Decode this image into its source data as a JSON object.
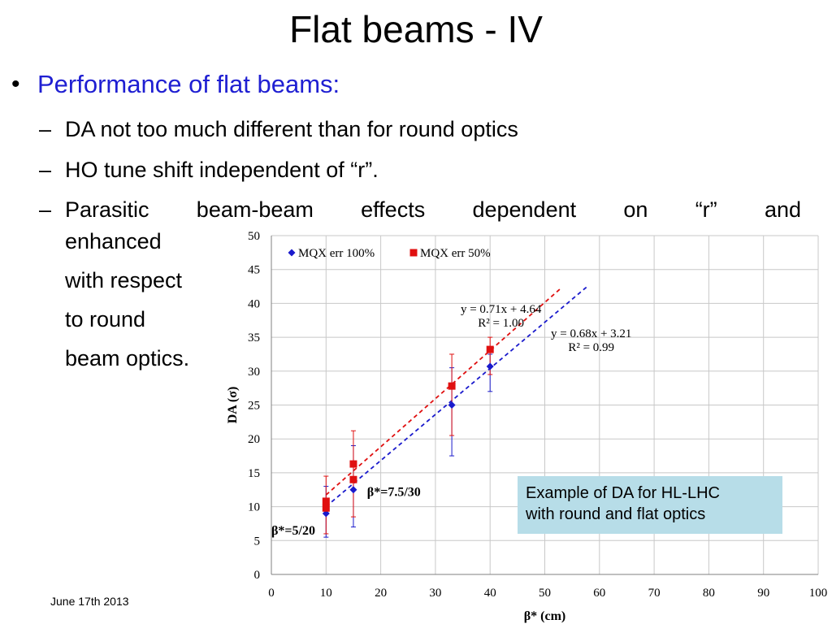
{
  "title": "Flat beams - IV",
  "bullet": {
    "main": "Performance of flat beams:",
    "main_color": "#1f1fd2",
    "subs": [
      "DA not too much different than for round optics",
      "HO tune shift independent of “r”.",
      "Parasitic beam-beam effects dependent on “r” and"
    ],
    "continuation": [
      "enhanced",
      "with respect",
      "to round",
      "beam optics."
    ]
  },
  "footer": {
    "date": "June 17th 2013"
  },
  "callout": {
    "line1": "Example of DA for HL-LHC",
    "line2": "with round and flat optics",
    "background": "#b7dde8"
  },
  "chart_data": {
    "type": "scatter",
    "xlabel": "β* (cm)",
    "ylabel": "DA (σ)",
    "xlim": [
      0,
      100
    ],
    "ylim": [
      0,
      50
    ],
    "xticks": [
      0,
      10,
      20,
      30,
      40,
      50,
      60,
      70,
      80,
      90,
      100
    ],
    "yticks": [
      0,
      5,
      10,
      15,
      20,
      25,
      30,
      35,
      40,
      45,
      50
    ],
    "grid": true,
    "legend_position": "top-left",
    "series": [
      {
        "name": "MQX err 100%",
        "marker": "diamond",
        "color": "#1a1acc",
        "x": [
          10,
          15,
          33,
          40
        ],
        "y": [
          9.0,
          12.5,
          25.0,
          30.7
        ],
        "yerr_low": [
          5.5,
          7.0,
          17.5,
          27.0
        ],
        "yerr_high": [
          13.0,
          19.0,
          30.5,
          32.5
        ],
        "trendline": {
          "slope": 0.68,
          "intercept": 3.21,
          "x_range": [
            10,
            58
          ],
          "equation": "y = 0.68x + 3.21",
          "r2": "R² = 0.99"
        }
      },
      {
        "name": "MQX err 50%",
        "marker": "square",
        "color": "#e01010",
        "x": [
          10,
          15,
          33,
          40
        ],
        "y": [
          10.8,
          16.3,
          27.8,
          33.2
        ],
        "yerr_low": [
          6.0,
          8.5,
          20.5,
          29.5
        ],
        "yerr_high": [
          14.5,
          21.2,
          32.5,
          35.0
        ],
        "trendline": {
          "slope": 0.71,
          "intercept": 4.64,
          "x_range": [
            10,
            53
          ],
          "equation": "y = 0.71x + 4.64",
          "r2": "R² = 1.00"
        }
      }
    ],
    "extra_points": [
      {
        "x": 10,
        "y": 9.8,
        "marker": "square",
        "color": "#e01010"
      },
      {
        "x": 15,
        "y": 14.0,
        "marker": "square",
        "color": "#e01010"
      }
    ],
    "annotations": [
      {
        "text": "β*=7.5/30",
        "x": 17.5,
        "y": 12.3
      },
      {
        "text": "β*=5/20",
        "x": 0.0,
        "y": 6.6
      }
    ]
  }
}
